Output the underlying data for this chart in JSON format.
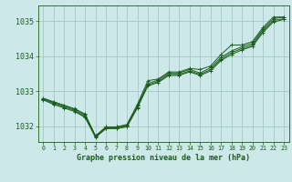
{
  "background_color": "#cce8e8",
  "grid_color": "#aacccc",
  "line_color": "#1a5c1a",
  "marker_color": "#1a5c1a",
  "title": "Graphe pression niveau de la mer (hPa)",
  "xlim": [
    -0.5,
    23.5
  ],
  "ylim": [
    1031.55,
    1035.45
  ],
  "yticks": [
    1032,
    1033,
    1034,
    1035
  ],
  "xticks": [
    0,
    1,
    2,
    3,
    4,
    5,
    6,
    7,
    8,
    9,
    10,
    11,
    12,
    13,
    14,
    15,
    16,
    17,
    18,
    19,
    20,
    21,
    22,
    23
  ],
  "series": [
    [
      1032.8,
      1032.7,
      1032.6,
      1032.5,
      1032.35,
      1031.72,
      1031.98,
      1031.98,
      1032.05,
      1032.62,
      1033.3,
      1033.35,
      1033.55,
      1033.55,
      1033.65,
      1033.62,
      1033.72,
      1034.05,
      1034.32,
      1034.32,
      1034.42,
      1034.82,
      1035.12,
      1035.12
    ],
    [
      1032.78,
      1032.68,
      1032.58,
      1032.48,
      1032.32,
      1031.72,
      1031.98,
      1031.98,
      1032.02,
      1032.58,
      1033.22,
      1033.32,
      1033.52,
      1033.52,
      1033.62,
      1033.52,
      1033.67,
      1033.97,
      1034.15,
      1034.27,
      1034.37,
      1034.77,
      1035.07,
      1035.12
    ],
    [
      1032.78,
      1032.65,
      1032.55,
      1032.45,
      1032.28,
      1031.7,
      1031.95,
      1031.95,
      1032.0,
      1032.55,
      1033.18,
      1033.28,
      1033.48,
      1033.48,
      1033.58,
      1033.48,
      1033.62,
      1033.92,
      1034.1,
      1034.22,
      1034.32,
      1034.72,
      1035.02,
      1035.07
    ],
    [
      1032.75,
      1032.62,
      1032.52,
      1032.42,
      1032.25,
      1031.68,
      1031.93,
      1031.93,
      1031.98,
      1032.52,
      1033.15,
      1033.25,
      1033.45,
      1033.45,
      1033.55,
      1033.45,
      1033.58,
      1033.88,
      1034.05,
      1034.18,
      1034.28,
      1034.68,
      1034.98,
      1035.05
    ]
  ]
}
